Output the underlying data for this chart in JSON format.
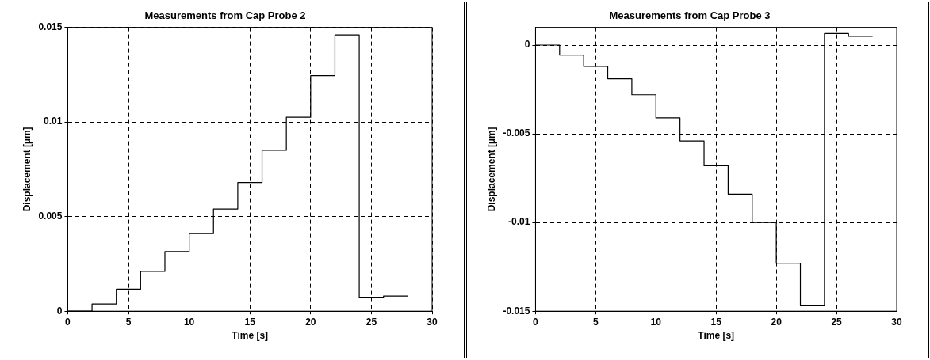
{
  "chart_data": [
    {
      "type": "step",
      "title": "Measurements from Cap Probe 2",
      "xlabel": "Time [s]",
      "ylabel": "Displacement [µm]",
      "x": [
        0,
        2,
        4,
        6,
        8,
        10,
        12,
        14,
        16,
        18,
        20,
        22,
        24,
        26,
        28
      ],
      "series": [
        {
          "color": "#000000",
          "values": [
            0,
            0.00038,
            0.00116,
            0.0021,
            0.00315,
            0.0041,
            0.0054,
            0.0068,
            0.0085,
            0.01025,
            0.01245,
            0.0146,
            0.0007,
            0.0008,
            0.0008
          ]
        }
      ],
      "xlim": [
        0,
        30
      ],
      "xticks": [
        0,
        5,
        10,
        15,
        20,
        25,
        30
      ],
      "ylim": [
        0,
        0.015
      ],
      "yticks": [
        0,
        0.005,
        0.01,
        0.015
      ],
      "grid": true,
      "line_style": "solid",
      "legend": false
    },
    {
      "type": "step",
      "title": "Measurements from Cap Probe 3",
      "xlabel": "Time [s]",
      "ylabel": "Displacement [µm]",
      "x": [
        0,
        2,
        4,
        6,
        8,
        10,
        12,
        14,
        16,
        18,
        20,
        22,
        24,
        26,
        28
      ],
      "series": [
        {
          "color": "#000000",
          "values": [
            0,
            -0.00056,
            -0.0012,
            -0.0019,
            -0.0028,
            -0.0041,
            -0.0054,
            -0.0068,
            -0.0084,
            -0.01,
            -0.0123,
            -0.0147,
            0.00065,
            0.0005,
            0.0005
          ]
        }
      ],
      "xlim": [
        0,
        30
      ],
      "xticks": [
        0,
        5,
        10,
        15,
        20,
        25,
        30
      ],
      "ylim": [
        -0.015,
        0.001
      ],
      "yticks": [
        -0.015,
        -0.01,
        -0.005,
        0
      ],
      "grid": true,
      "line_style": "solid",
      "legend": false
    }
  ]
}
